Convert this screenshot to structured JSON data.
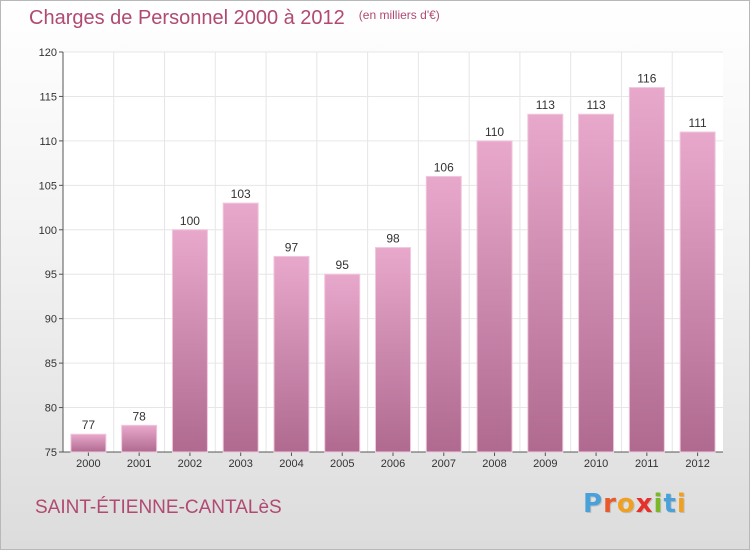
{
  "title": "Charges de Personnel 2000 à 2012",
  "unit_note": "(en milliers d'€)",
  "commune": "SAINT-ÉTIENNE-CANTALèS",
  "logo": {
    "text": "Proxiti",
    "letter_colors": [
      "#4aa0d8",
      "#e85a2a",
      "#f0a020",
      "#e8302a",
      "#7ab82a",
      "#4aa0d8",
      "#f0a020"
    ]
  },
  "colors": {
    "title": "#b04a72",
    "bar_top": "#e8a8cc",
    "bar_bottom": "#b06a90",
    "grid": "#e6e6e6"
  },
  "chart_data": {
    "type": "bar",
    "categories": [
      "2000",
      "2001",
      "2002",
      "2003",
      "2004",
      "2005",
      "2006",
      "2007",
      "2008",
      "2009",
      "2010",
      "2011",
      "2012"
    ],
    "values": [
      77,
      78,
      100,
      103,
      97,
      95,
      98,
      106,
      110,
      113,
      113,
      116,
      111
    ],
    "ylim": [
      75,
      120
    ],
    "yticks": [
      75,
      80,
      85,
      90,
      95,
      100,
      105,
      110,
      115,
      120
    ],
    "grid": true
  }
}
